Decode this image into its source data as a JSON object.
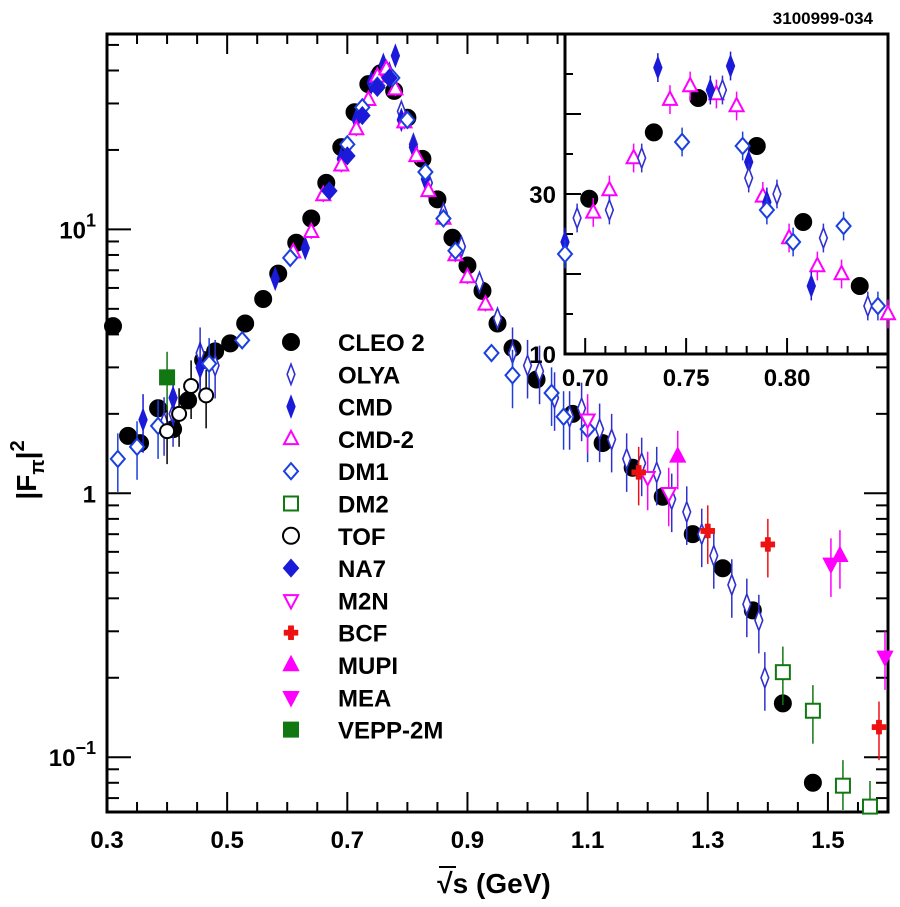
{
  "figure_code": "3100999-034",
  "chart_data": [
    {
      "type": "scatter",
      "name": "main",
      "xlabel_sqrt": "√s",
      "xlabel_unit": "(GeV)",
      "ylabel_base": "|F",
      "ylabel_sub": "π",
      "ylabel_sup": "2",
      "xlim": [
        0.3,
        1.6
      ],
      "ylim": [
        0.062,
        55
      ],
      "yscale": "log",
      "x_ticks": [
        {
          "value": 0.3,
          "label": "0.3"
        },
        {
          "value": 0.5,
          "label": "0.5"
        },
        {
          "value": 0.7,
          "label": "0.7"
        },
        {
          "value": 0.9,
          "label": "0.9"
        },
        {
          "value": 1.1,
          "label": "1.1"
        },
        {
          "value": 1.3,
          "label": "1.3"
        },
        {
          "value": 1.5,
          "label": "1.5"
        }
      ],
      "y_ticks": [
        {
          "value": 0.1,
          "base": "10",
          "exp": "−1"
        },
        {
          "value": 1,
          "base": "1",
          "exp": ""
        },
        {
          "value": 10,
          "base": "10",
          "exp": "1"
        }
      ],
      "legend": [
        {
          "name": "CLEO 2",
          "marker": "circle",
          "filled": true,
          "color": "#000000"
        },
        {
          "name": "OLYA",
          "marker": "thin-diamond",
          "filled": false,
          "color": "#3030d0"
        },
        {
          "name": "CMD",
          "marker": "thin-diamond",
          "filled": true,
          "color": "#1a1ad8"
        },
        {
          "name": "CMD-2",
          "marker": "triangle-up",
          "filled": false,
          "color": "#ff00ff"
        },
        {
          "name": "DM1",
          "marker": "diamond",
          "filled": false,
          "color": "#1a40e0"
        },
        {
          "name": "DM2",
          "marker": "square",
          "filled": false,
          "color": "#117711"
        },
        {
          "name": "TOF",
          "marker": "circle",
          "filled": false,
          "color": "#000000"
        },
        {
          "name": "NA7",
          "marker": "diamond",
          "filled": true,
          "color": "#1a1ad8"
        },
        {
          "name": "M2N",
          "marker": "triangle-down",
          "filled": false,
          "color": "#ff00ff"
        },
        {
          "name": "BCF",
          "marker": "cross",
          "filled": true,
          "color": "#ee1111"
        },
        {
          "name": "MUPI",
          "marker": "triangle-up",
          "filled": true,
          "color": "#ff00ff"
        },
        {
          "name": "MEA",
          "marker": "triangle-down",
          "filled": true,
          "color": "#ff00ff"
        },
        {
          "name": "VEPP-2M",
          "marker": "square",
          "filled": true,
          "color": "#117711"
        }
      ],
      "series": [
        {
          "name": "CLEO 2",
          "points": [
            [
              0.31,
              4.3
            ],
            [
              0.335,
              1.65
            ],
            [
              0.355,
              1.55
            ],
            [
              0.385,
              2.1
            ],
            [
              0.41,
              1.75
            ],
            [
              0.435,
              2.25
            ],
            [
              0.46,
              3.2
            ],
            [
              0.48,
              3.45
            ],
            [
              0.505,
              3.7
            ],
            [
              0.53,
              4.4
            ],
            [
              0.56,
              5.45
            ],
            [
              0.585,
              6.8
            ],
            [
              0.615,
              8.9
            ],
            [
              0.64,
              11.0
            ],
            [
              0.665,
              15.0
            ],
            [
              0.69,
              20.5
            ],
            [
              0.712,
              27.8
            ],
            [
              0.735,
              35.5
            ],
            [
              0.755,
              39.0
            ],
            [
              0.778,
              33.5
            ],
            [
              0.8,
              26.5
            ],
            [
              0.825,
              18.5
            ],
            [
              0.85,
              13.0
            ],
            [
              0.875,
              9.3
            ],
            [
              0.9,
              7.3
            ],
            [
              0.925,
              5.85
            ],
            [
              0.95,
              4.4
            ],
            [
              0.975,
              3.55
            ],
            [
              1.015,
              2.7
            ],
            [
              1.075,
              2.0
            ],
            [
              1.125,
              1.55
            ],
            [
              1.175,
              1.25
            ],
            [
              1.225,
              0.97
            ],
            [
              1.275,
              0.7
            ],
            [
              1.325,
              0.52
            ],
            [
              1.375,
              0.36
            ],
            [
              1.425,
              0.16
            ],
            [
              1.475,
              0.08
            ]
          ]
        },
        {
          "name": "OLYA",
          "points": [
            [
              0.395,
              1.85
            ],
            [
              0.41,
              2.0
            ],
            [
              0.455,
              3.4
            ],
            [
              0.48,
              3.05
            ],
            [
              0.77,
              39.0
            ],
            [
              0.79,
              28.0
            ],
            [
              0.81,
              21.0
            ],
            [
              0.835,
              15.0
            ],
            [
              0.86,
              11.5
            ],
            [
              0.89,
              8.6
            ],
            [
              0.92,
              6.3
            ],
            [
              0.95,
              4.6
            ],
            [
              0.975,
              3.4
            ],
            [
              1.0,
              3.05
            ],
            [
              1.02,
              2.9
            ],
            [
              1.045,
              2.3
            ],
            [
              1.07,
              1.95
            ],
            [
              1.09,
              2.1
            ],
            [
              1.12,
              1.75
            ],
            [
              1.14,
              1.6
            ],
            [
              1.165,
              1.35
            ],
            [
              1.19,
              1.3
            ],
            [
              1.215,
              1.2
            ],
            [
              1.24,
              0.95
            ],
            [
              1.265,
              0.85
            ],
            [
              1.29,
              0.7
            ],
            [
              1.31,
              0.58
            ],
            [
              1.34,
              0.45
            ],
            [
              1.365,
              0.38
            ],
            [
              1.385,
              0.33
            ],
            [
              1.395,
              0.2
            ]
          ]
        },
        {
          "name": "CMD",
          "points": [
            [
              0.36,
              1.9
            ],
            [
              0.41,
              2.3
            ],
            [
              0.455,
              3.0
            ],
            [
              0.58,
              6.5
            ],
            [
              0.63,
              8.5
            ],
            [
              0.69,
              18.5
            ],
            [
              0.715,
              26.0
            ],
            [
              0.74,
              36.0
            ],
            [
              0.76,
              42.0
            ],
            [
              0.78,
              45.5
            ],
            [
              0.79,
              26.0
            ],
            [
              0.81,
              20.5
            ],
            [
              0.83,
              15.5
            ]
          ]
        },
        {
          "name": "CMD-2",
          "points": [
            [
              0.61,
              8.2
            ],
            [
              0.64,
              9.8
            ],
            [
              0.66,
              13.5
            ],
            [
              0.69,
              17.5
            ],
            [
              0.715,
              24.0
            ],
            [
              0.735,
              31.0
            ],
            [
              0.75,
              38.0
            ],
            [
              0.765,
              40.5
            ],
            [
              0.78,
              34.0
            ],
            [
              0.795,
              25.5
            ],
            [
              0.815,
              19.0
            ],
            [
              0.835,
              14.0
            ],
            [
              0.86,
              11.0
            ],
            [
              0.88,
              8.0
            ],
            [
              0.9,
              6.6
            ],
            [
              0.93,
              5.2
            ]
          ]
        },
        {
          "name": "DM1",
          "points": [
            [
              0.318,
              1.35
            ],
            [
              0.35,
              1.5
            ],
            [
              0.385,
              1.8
            ],
            [
              0.47,
              3.1
            ],
            [
              0.525,
              3.8
            ],
            [
              0.605,
              7.8
            ],
            [
              0.7,
              21.0
            ],
            [
              0.725,
              29.0
            ],
            [
              0.75,
              35.0
            ],
            [
              0.775,
              37.5
            ],
            [
              0.8,
              26.0
            ],
            [
              0.83,
              16.5
            ],
            [
              0.86,
              11.0
            ],
            [
              0.88,
              8.3
            ],
            [
              0.94,
              3.4
            ],
            [
              0.975,
              2.8
            ],
            [
              1.04,
              2.4
            ],
            [
              1.06,
              1.95
            ],
            [
              1.1,
              1.75
            ]
          ]
        },
        {
          "name": "DM2",
          "points": [
            [
              1.425,
              0.21
            ],
            [
              1.475,
              0.15
            ],
            [
              1.525,
              0.078
            ],
            [
              1.57,
              0.065
            ]
          ]
        },
        {
          "name": "TOF",
          "points": [
            [
              0.4,
              1.72
            ],
            [
              0.42,
              2.0
            ],
            [
              0.44,
              2.55
            ],
            [
              0.465,
              2.35
            ]
          ]
        },
        {
          "name": "NA7",
          "points": [
            [
              0.67,
              14.0
            ],
            [
              0.7,
              19.0
            ],
            [
              0.725,
              27.0
            ],
            [
              0.75,
              34.5
            ],
            [
              0.77,
              37.5
            ]
          ]
        },
        {
          "name": "M2N",
          "points": [
            [
              1.1,
              1.9
            ],
            [
              1.2,
              1.15
            ],
            [
              1.235,
              1.0
            ]
          ]
        },
        {
          "name": "BCF",
          "points": [
            [
              1.185,
              1.2
            ],
            [
              1.3,
              0.72
            ],
            [
              1.4,
              0.64
            ],
            [
              1.585,
              0.13
            ]
          ]
        },
        {
          "name": "MUPI",
          "points": [
            [
              1.25,
              1.38
            ],
            [
              1.52,
              0.58
            ]
          ]
        },
        {
          "name": "MEA",
          "points": [
            [
              1.505,
              0.54
            ],
            [
              1.595,
              0.24
            ]
          ]
        },
        {
          "name": "VEPP-2M",
          "points": [
            [
              0.4,
              2.75
            ]
          ]
        }
      ]
    },
    {
      "type": "scatter",
      "name": "inset",
      "xlim": [
        0.69,
        0.85
      ],
      "ylim": [
        10,
        50
      ],
      "yscale": "linear",
      "x_ticks": [
        {
          "value": 0.7,
          "label": "0.70"
        },
        {
          "value": 0.75,
          "label": "0.75"
        },
        {
          "value": 0.8,
          "label": "0.80"
        }
      ],
      "y_ticks": [
        {
          "value": 10,
          "label": "10"
        },
        {
          "value": 30,
          "label": "30"
        }
      ],
      "series": [
        {
          "name": "CLEO 2",
          "points": [
            [
              0.702,
              29.4
            ],
            [
              0.734,
              37.7
            ],
            [
              0.756,
              42.0
            ],
            [
              0.785,
              36.0
            ],
            [
              0.808,
              26.5
            ],
            [
              0.836,
              18.5
            ]
          ]
        },
        {
          "name": "CMD-2",
          "points": [
            [
              0.704,
              27.7
            ],
            [
              0.712,
              30.5
            ],
            [
              0.724,
              34.5
            ],
            [
              0.742,
              41.8
            ],
            [
              0.752,
              43.5
            ],
            [
              0.765,
              42.5
            ],
            [
              0.775,
              41.0
            ],
            [
              0.788,
              29.7
            ],
            [
              0.801,
              24.5
            ],
            [
              0.815,
              21.0
            ],
            [
              0.827,
              20.0
            ],
            [
              0.85,
              15.0
            ]
          ]
        },
        {
          "name": "CMD",
          "points": [
            [
              0.69,
              24.0
            ],
            [
              0.736,
              45.8
            ],
            [
              0.762,
              43.0
            ],
            [
              0.772,
              46.0
            ],
            [
              0.781,
              34.0
            ],
            [
              0.79,
              29.0
            ],
            [
              0.812,
              18.5
            ]
          ]
        },
        {
          "name": "DM1",
          "points": [
            [
              0.69,
              22.5
            ],
            [
              0.748,
              36.5
            ],
            [
              0.778,
              36.0
            ],
            [
              0.79,
              28.0
            ],
            [
              0.803,
              24.0
            ],
            [
              0.828,
              26.0
            ],
            [
              0.845,
              16.0
            ]
          ]
        },
        {
          "name": "OLYA",
          "points": [
            [
              0.696,
              27.0
            ],
            [
              0.712,
              28.0
            ],
            [
              0.728,
              34.5
            ],
            [
              0.768,
              43.0
            ],
            [
              0.781,
              32.0
            ],
            [
              0.795,
              30.0
            ],
            [
              0.818,
              24.5
            ],
            [
              0.84,
              16.0
            ]
          ]
        }
      ]
    }
  ]
}
